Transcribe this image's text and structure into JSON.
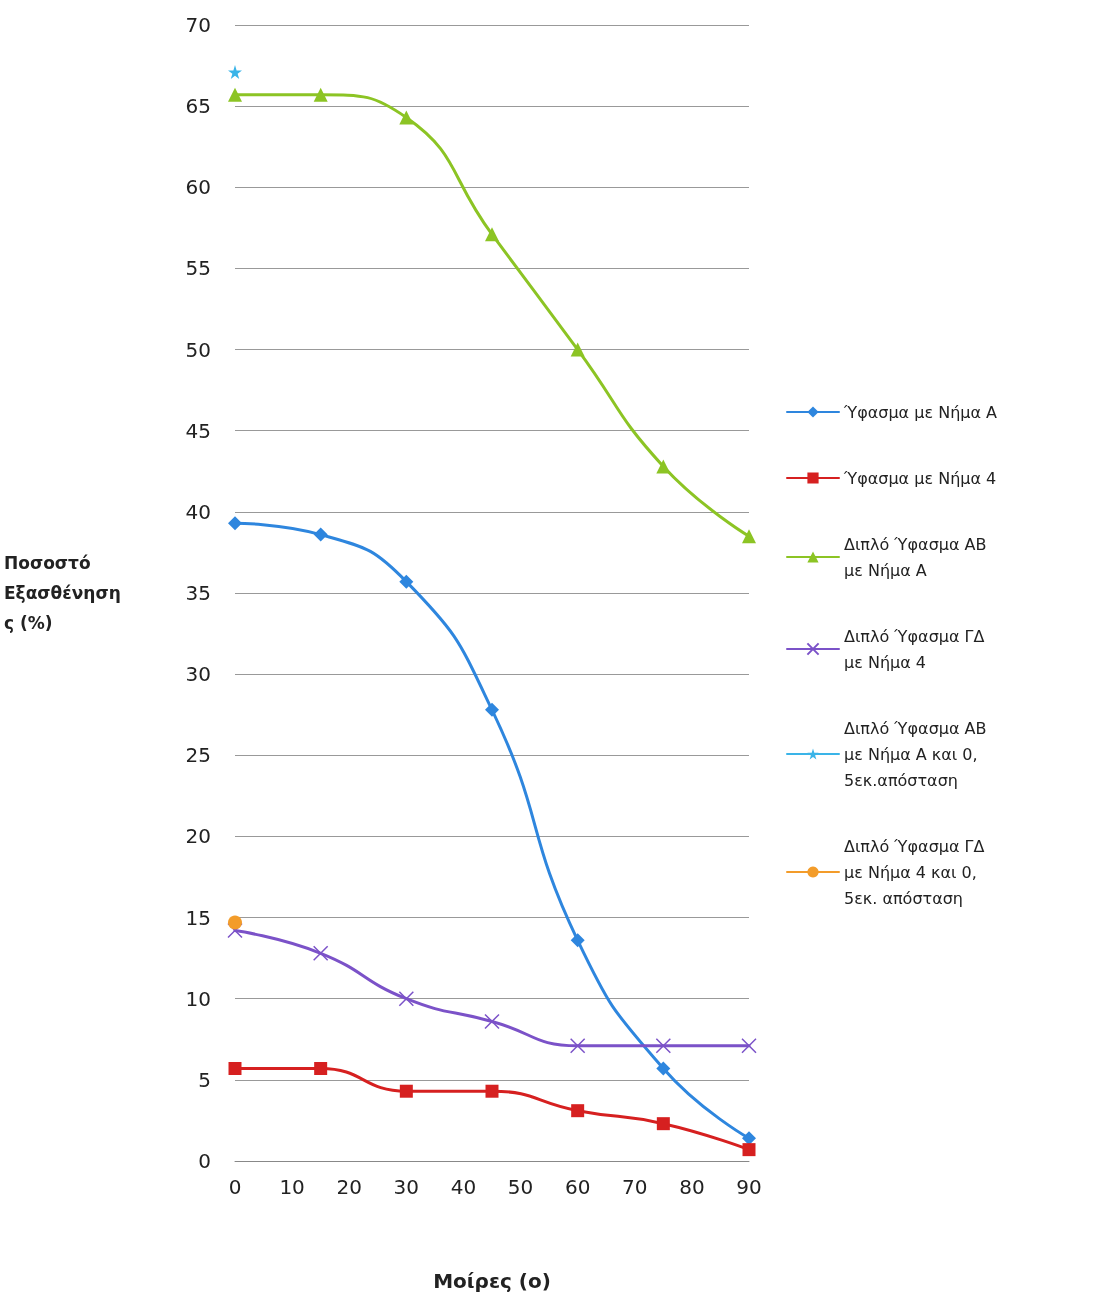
{
  "chart_data": {
    "type": "line",
    "xlabel": "Μοίρες (ο)",
    "ylabel": "Ποσοστό Εξασθένησης (%)",
    "xlim": [
      0,
      90
    ],
    "xticks": [
      0,
      10,
      20,
      30,
      40,
      50,
      60,
      70,
      80,
      90
    ],
    "ylim": [
      0,
      70
    ],
    "yticks": [
      0,
      5,
      10,
      15,
      20,
      25,
      30,
      35,
      40,
      45,
      50,
      55,
      60,
      65,
      70
    ],
    "grid": "y",
    "legend": "right",
    "series": [
      {
        "name": "Ύφασμα με Νήμα Α",
        "color": "#2e86de",
        "marker": "diamond",
        "x": [
          0,
          15,
          30,
          45,
          60,
          75,
          90
        ],
        "values": [
          39.3,
          38.6,
          35.7,
          27.8,
          13.6,
          5.7,
          1.4
        ]
      },
      {
        "name": "Ύφασμα με Νήμα 4",
        "color": "#d62020",
        "marker": "square",
        "x": [
          0,
          15,
          30,
          45,
          60,
          75,
          90
        ],
        "values": [
          5.7,
          5.7,
          4.3,
          4.3,
          3.1,
          2.3,
          0.7
        ]
      },
      {
        "name": "Διπλό Ύφασμα ΑΒ με Νήμα Α",
        "color": "#8cc424",
        "marker": "triangle",
        "x": [
          0,
          15,
          30,
          45,
          60,
          75,
          90
        ],
        "values": [
          65.7,
          65.7,
          64.3,
          57.1,
          50.0,
          42.8,
          38.5
        ]
      },
      {
        "name": "Διπλό Ύφασμα ΓΔ με Νήμα 4",
        "color": "#7b52c8",
        "marker": "cross",
        "x": [
          0,
          15,
          30,
          45,
          60,
          75,
          90
        ],
        "values": [
          14.2,
          12.8,
          10.0,
          8.6,
          7.1,
          7.1,
          7.1
        ]
      },
      {
        "name": "Διπλό Ύφασμα ΑΒ με Νήμα Α και 0,5εκ.απόσταση",
        "color": "#3ab4e8",
        "marker": "star",
        "x": [
          0
        ],
        "values": [
          67.1
        ]
      },
      {
        "name": "Διπλό Ύφασμα ΓΔ με Νήμα 4 και 0,5εκ. απόσταση",
        "color": "#f39c2a",
        "marker": "circle",
        "x": [
          0
        ],
        "values": [
          14.7
        ]
      }
    ]
  }
}
